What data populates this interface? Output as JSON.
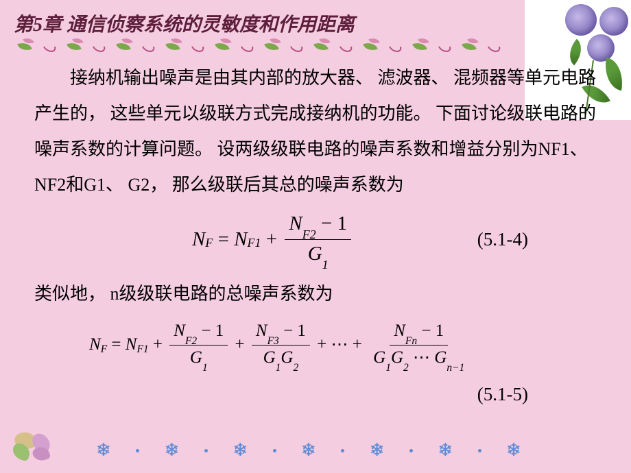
{
  "title": "第5章 通信侦察系统的灵敏度和作用距离",
  "para1": "接纳机输出噪声是由其内部的放大器、 滤波器、 混频器等单元电路产生的， 这些单元以级联方式完成接纳机的功能。 下面讨论级联电路的噪声系数的计算问题。 设两级级联电路的噪声系数和增益分别为NF1、 NF2和G1、 G2， 那么级联后其总的噪声系数为",
  "para2": "类似地， n级级联电路的总噪声系数为",
  "eq_label_1": "(5.1-4)",
  "eq_label_2": "(5.1-5)",
  "style": {
    "background_color": "#f5cde0",
    "title_color": "#5d1e3a",
    "title_fontfamily": "KaiTi",
    "title_fontsize": 28,
    "body_fontfamily": "SimSun",
    "body_fontsize": 26,
    "math_fontfamily": "Times New Roman",
    "snowflake_color": "#5d8bd5",
    "leaf_green": "#7aa84a",
    "leaf_pink": "#d98cb0",
    "swirl_color": "#b84c7a",
    "flower_colors": [
      "#c5b8e8",
      "#8a7cc0",
      "#6a5aa0"
    ],
    "corner_bg": "#ffffff",
    "corner_leaf": "#5a9a3a"
  },
  "eq1": {
    "lhs_base": "N",
    "lhs_sub": "F",
    "rhs1_base": "N",
    "rhs1_sub": "F1",
    "num_base": "N",
    "num_sub": "F2",
    "den_base": "G",
    "den_sub": "1",
    "minus1": "− 1",
    "eq": "=",
    "plus": "+"
  },
  "eq2": {
    "lhs_base": "N",
    "lhs_sub": "F",
    "t1_base": "N",
    "t1_sub": "F1",
    "t2_num_base": "N",
    "t2_num_sub": "F2",
    "t2_den_base": "G",
    "t2_den_sub": "1",
    "t3_num_base": "N",
    "t3_num_sub": "F3",
    "t3_den_a": "G",
    "t3_den_a_sub": "1",
    "t3_den_b": "G",
    "t3_den_b_sub": "2",
    "dots": "⋯",
    "tn_num_base": "N",
    "tn_num_sub": "Fn",
    "tn_den_a": "G",
    "tn_den_a_sub": "1",
    "tn_den_b": "G",
    "tn_den_b_sub": "2",
    "tn_den_c": "G",
    "tn_den_c_sub": "n−1",
    "minus1": "− 1",
    "eq": "=",
    "plus": "+"
  },
  "divider_count": 10,
  "snow_count": 7
}
